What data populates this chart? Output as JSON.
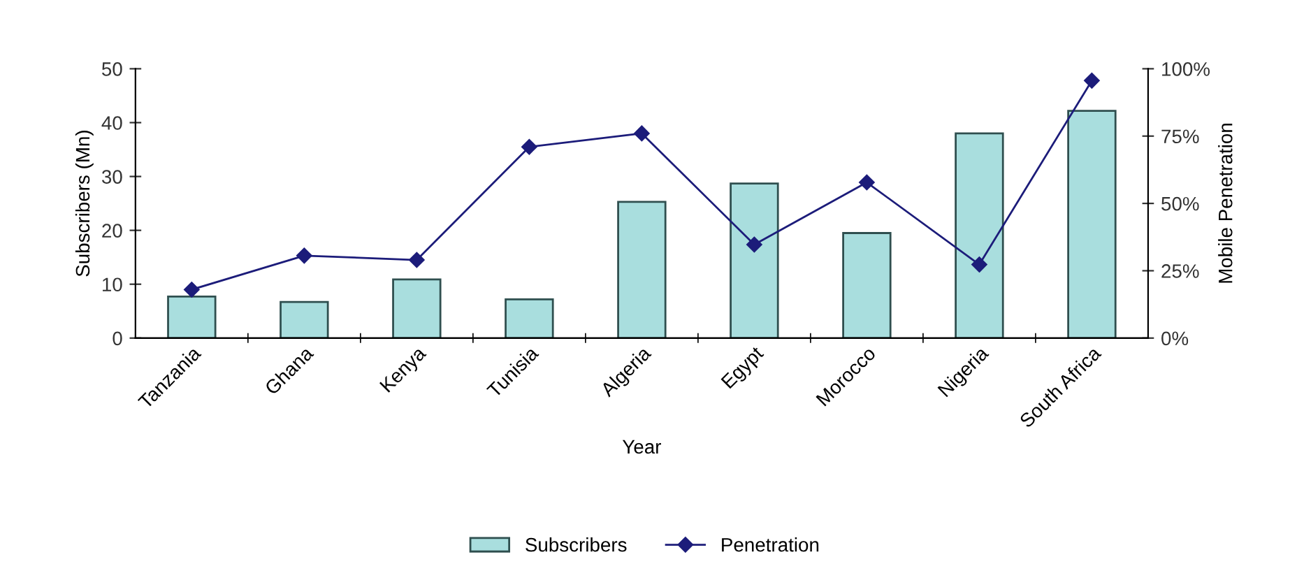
{
  "chart_data": {
    "type": "bar",
    "xlabel": "Year",
    "ylabel": "Subscribers (Mn)",
    "y2label": "Mobile Penetration",
    "categories": [
      "Tanzania",
      "Ghana",
      "Kenya",
      "Tunisia",
      "Algeria",
      "Egypt",
      "Morocco",
      "Nigeria",
      "South Africa"
    ],
    "series": [
      {
        "name": "Subscribers",
        "color": "#a9dede",
        "values": [
          7.7,
          6.7,
          10.9,
          7.2,
          25.3,
          28.7,
          19.5,
          38,
          42.2
        ]
      },
      {
        "name": "Penetration",
        "type": "line",
        "axis": "y2",
        "color": "#1c1c7a",
        "marker": "diamond",
        "values": [
          18,
          30.6,
          29,
          71,
          76,
          34.7,
          57.8,
          27.3,
          95.6
        ]
      }
    ],
    "ylim": [
      0,
      50
    ],
    "yticks": [
      0,
      10,
      20,
      30,
      40,
      50
    ],
    "y2lim": [
      0,
      100
    ],
    "y2ticks": [
      {
        "value": 0,
        "label": "0%"
      },
      {
        "value": 25,
        "label": "25%"
      },
      {
        "value": 50,
        "label": "50%"
      },
      {
        "value": 75,
        "label": "75%"
      },
      {
        "value": 100,
        "label": "100%"
      }
    ],
    "grid": false,
    "legend": "bottom"
  }
}
